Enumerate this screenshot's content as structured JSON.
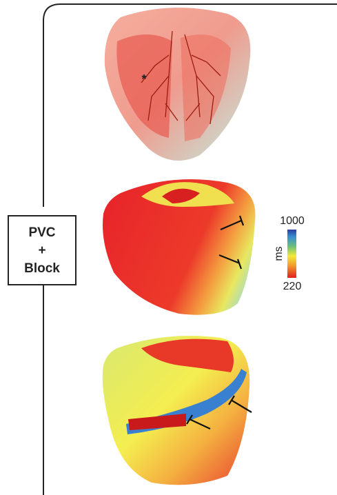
{
  "label_box": {
    "lines": [
      "PVC",
      "+",
      "Block"
    ]
  },
  "pacing_marker": "*",
  "colorbar": {
    "max": 1000,
    "min": 220,
    "unit": "ms"
  }
}
